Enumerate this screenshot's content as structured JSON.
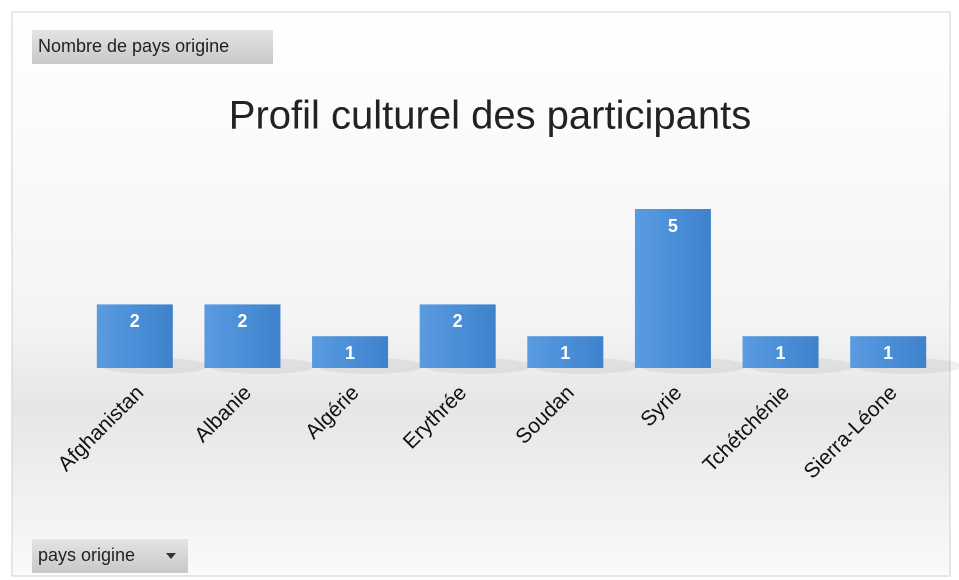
{
  "chart_data": {
    "type": "bar",
    "title": "Profil culturel des participants",
    "value_field_button": "Nombre de pays origine",
    "axis_field_button": "pays origine",
    "categories": [
      "Afghanistan",
      "Albanie",
      "Algérie",
      "Erythrée",
      "Soudan",
      "Syrie",
      "Tchétchénie",
      "Sierra-Léone"
    ],
    "values": [
      2,
      2,
      1,
      2,
      1,
      5,
      1,
      1
    ],
    "color": "#4a90d9"
  }
}
